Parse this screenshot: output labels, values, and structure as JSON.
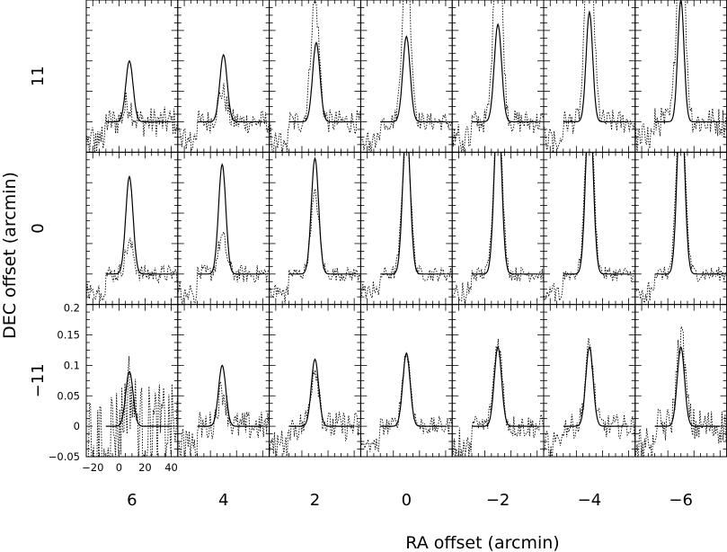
{
  "chart_data": {
    "type": "line",
    "xlabel": "RA offset (arcmin)",
    "ylabel": "DEC offset (arcmin)",
    "columns": [
      "6",
      "4",
      "2",
      "0",
      "−2",
      "−4",
      "−6"
    ],
    "rows": [
      "11",
      "0",
      "−11"
    ],
    "xlim": [
      -25,
      45
    ],
    "ylim": [
      -0.05,
      0.2
    ],
    "xticks": [
      "−20",
      "0",
      "20",
      "40"
    ],
    "yticks": [
      "−0.05",
      "0",
      "0.05",
      "0.1",
      "0.15",
      "0.2"
    ],
    "series": [
      {
        "style": "solid",
        "description_note": "Gaussian model profile",
        "panels": [
          [
            {
              "center": 8,
              "peak": 0.1,
              "sigma": 2.8
            },
            {
              "center": 10,
              "peak": 0.11,
              "sigma": 2.8
            },
            {
              "center": 11,
              "peak": 0.13,
              "sigma": 2.8
            },
            {
              "center": 10,
              "peak": 0.14,
              "sigma": 2.8
            },
            {
              "center": 10,
              "peak": 0.16,
              "sigma": 2.8
            },
            {
              "center": 10,
              "peak": 0.18,
              "sigma": 2.5
            },
            {
              "center": 10,
              "peak": 0.2,
              "sigma": 2.4
            }
          ],
          [
            {
              "center": 8,
              "peak": 0.16,
              "sigma": 2.8
            },
            {
              "center": 9,
              "peak": 0.18,
              "sigma": 2.8
            },
            {
              "center": 10,
              "peak": 0.19,
              "sigma": 2.8
            },
            {
              "center": 10,
              "peak": 0.25,
              "sigma": 2.8
            },
            {
              "center": 10,
              "peak": 0.28,
              "sigma": 2.8
            },
            {
              "center": 10,
              "peak": 0.29,
              "sigma": 2.8
            },
            {
              "center": 10,
              "peak": 0.3,
              "sigma": 2.8
            }
          ],
          [
            {
              "center": 8,
              "peak": 0.09,
              "sigma": 2.8
            },
            {
              "center": 9,
              "peak": 0.1,
              "sigma": 2.8
            },
            {
              "center": 10,
              "peak": 0.11,
              "sigma": 2.8
            },
            {
              "center": 10,
              "peak": 0.12,
              "sigma": 2.8
            },
            {
              "center": 10,
              "peak": 0.13,
              "sigma": 2.8
            },
            {
              "center": 10,
              "peak": 0.13,
              "sigma": 2.8
            },
            {
              "center": 10,
              "peak": 0.13,
              "sigma": 2.8
            }
          ]
        ]
      },
      {
        "style": "dotted",
        "description_note": "observed spectrum",
        "panels": [
          [
            {
              "center": 7,
              "peak": 0.03,
              "noise": 0.025
            },
            {
              "center": 9,
              "peak": 0.05,
              "noise": 0.02
            },
            {
              "center": 10,
              "peak": 0.2,
              "noise": 0.02
            },
            {
              "center": 10,
              "peak": 0.27,
              "noise": 0.015
            },
            {
              "center": 10,
              "peak": 0.33,
              "noise": 0.02
            },
            {
              "center": 10,
              "peak": 0.33,
              "noise": 0.02
            },
            {
              "center": 10,
              "peak": 0.33,
              "noise": 0.025
            }
          ],
          [
            {
              "center": 8,
              "peak": 0.05,
              "noise": 0.015
            },
            {
              "center": 9,
              "peak": 0.06,
              "noise": 0.015
            },
            {
              "center": 10,
              "peak": 0.13,
              "noise": 0.012
            },
            {
              "center": 10,
              "peak": 0.23,
              "noise": 0.012
            },
            {
              "center": 10,
              "peak": 0.28,
              "noise": 0.012
            },
            {
              "center": 10,
              "peak": 0.29,
              "noise": 0.012
            },
            {
              "center": 10,
              "peak": 0.3,
              "noise": 0.012
            }
          ],
          [
            {
              "center": 8,
              "peak": 0.06,
              "noise": 0.07
            },
            {
              "center": 9,
              "peak": 0.06,
              "noise": 0.025
            },
            {
              "center": 10,
              "peak": 0.1,
              "noise": 0.025
            },
            {
              "center": 10,
              "peak": 0.12,
              "noise": 0.015
            },
            {
              "center": 10,
              "peak": 0.14,
              "noise": 0.02
            },
            {
              "center": 10,
              "peak": 0.13,
              "noise": 0.02
            },
            {
              "center": 10,
              "peak": 0.15,
              "noise": 0.03
            }
          ]
        ]
      }
    ],
    "grid": false,
    "legend": "none"
  }
}
